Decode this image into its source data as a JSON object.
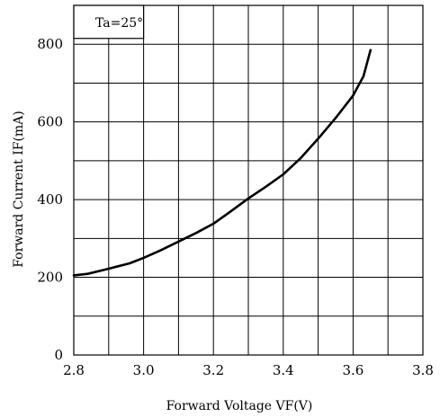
{
  "chart_data": {
    "type": "line",
    "title": "",
    "xlabel": "Forward Voltage VF(V)",
    "ylabel": "Forward Current IF(mA)",
    "annotation": "Ta=25°",
    "xlim": [
      2.8,
      3.8
    ],
    "ylim": [
      0,
      900
    ],
    "grid": true,
    "x_ticks": [
      "2.8",
      "3.0",
      "3.2",
      "3.4",
      "3.6",
      "3.8"
    ],
    "y_ticks": [
      "0",
      "200",
      "400",
      "600",
      "800"
    ],
    "x": [
      2.8,
      2.84,
      2.9,
      2.96,
      3.0,
      3.05,
      3.1,
      3.15,
      3.2,
      3.25,
      3.3,
      3.35,
      3.4,
      3.45,
      3.5,
      3.55,
      3.6,
      3.63,
      3.65
    ],
    "values": [
      205,
      209,
      222,
      236,
      250,
      270,
      292,
      314,
      338,
      370,
      403,
      433,
      465,
      507,
      557,
      610,
      668,
      718,
      785
    ]
  }
}
